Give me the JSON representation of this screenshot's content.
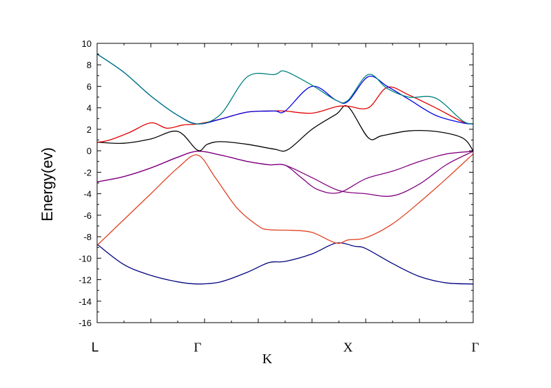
{
  "chart_data": {
    "type": "line",
    "title": "",
    "xlabel": "K",
    "ylabel": "Energy(ev)",
    "ylim": [
      -16,
      10
    ],
    "xlim": [
      0,
      7
    ],
    "y_ticks": [
      "10",
      "8",
      "6",
      "4",
      "2",
      "0",
      "-2",
      "-4",
      "-6",
      "-8",
      "-10",
      "-12",
      "-14",
      "-16"
    ],
    "k_points": [
      {
        "label": "L",
        "x": 0
      },
      {
        "label": "Γ",
        "x": 1.87
      },
      {
        "label": "X",
        "x": 4.67
      },
      {
        "label": "Γ",
        "x": 7
      }
    ],
    "grid": false,
    "legend": "none",
    "series": [
      {
        "color": "#000080",
        "x": [
          0,
          0.5,
          1.0,
          1.5,
          1.87,
          2.3,
          2.8,
          3.2,
          3.5,
          4.0,
          4.45,
          4.8,
          5.0,
          5.5,
          6.0,
          6.5,
          7.0
        ],
        "y": [
          -8.7,
          -10.6,
          -11.6,
          -12.2,
          -12.4,
          -12.2,
          -11.3,
          -10.4,
          -10.3,
          -9.6,
          -8.6,
          -8.9,
          -9.1,
          -10.5,
          -11.7,
          -12.3,
          -12.4
        ]
      },
      {
        "color": "#e04020",
        "x": [
          0,
          0.5,
          1.0,
          1.5,
          1.87,
          2.2,
          2.6,
          3.0,
          3.2,
          3.6,
          4.0,
          4.45,
          4.67,
          5.0,
          5.5,
          6.0,
          6.5,
          7.0
        ],
        "y": [
          -8.8,
          -6.4,
          -4.0,
          -1.6,
          -0.4,
          -2.5,
          -5.3,
          -7.0,
          -7.35,
          -7.4,
          -7.6,
          -8.6,
          -8.3,
          -8.1,
          -6.8,
          -4.8,
          -2.6,
          -0.3
        ]
      },
      {
        "color": "#800080",
        "x": [
          0,
          0.5,
          1.0,
          1.5,
          1.87,
          2.3,
          2.8,
          3.2,
          3.5,
          4.0,
          4.5,
          5.0,
          5.5,
          6.0,
          6.5,
          7.0
        ],
        "y": [
          -2.9,
          -2.4,
          -1.6,
          -0.6,
          -0.05,
          -0.4,
          -1.0,
          -1.3,
          -1.35,
          -2.5,
          -3.7,
          -4.0,
          -4.2,
          -3.1,
          -1.3,
          -0.05
        ]
      },
      {
        "color": "#800080",
        "x": [
          0,
          0.5,
          1.0,
          1.5,
          1.87,
          2.3,
          2.8,
          3.2,
          3.5,
          3.8,
          4.1,
          4.5,
          5.0,
          5.5,
          6.0,
          6.5,
          7.0
        ],
        "y": [
          -2.9,
          -2.4,
          -1.6,
          -0.6,
          -0.05,
          -0.4,
          -1.0,
          -1.3,
          -1.35,
          -2.5,
          -3.6,
          -3.9,
          -2.6,
          -1.9,
          -1.0,
          -0.3,
          -0.05
        ]
      },
      {
        "color": "#000000",
        "x": [
          0,
          0.5,
          1.0,
          1.5,
          1.87,
          2.05,
          2.3,
          2.8,
          3.3,
          3.55,
          4.0,
          4.45,
          4.67,
          5.05,
          5.3,
          5.8,
          6.3,
          6.8,
          7.0
        ],
        "y": [
          0.8,
          0.7,
          1.1,
          1.8,
          0.05,
          0.6,
          0.85,
          0.6,
          0.15,
          0.1,
          2.0,
          3.4,
          4.1,
          1.2,
          1.4,
          1.85,
          1.8,
          1.2,
          0.0
        ]
      },
      {
        "color": "#e00000",
        "x": [
          0,
          0.2,
          0.6,
          1.0,
          1.3,
          1.6,
          1.87,
          2.3,
          2.8,
          3.3,
          3.5,
          4.0,
          4.45,
          4.67,
          5.05,
          5.4,
          5.8,
          6.3,
          6.8,
          7.0
        ],
        "y": [
          0.8,
          0.95,
          1.7,
          2.6,
          2.1,
          2.4,
          2.5,
          2.95,
          3.6,
          3.7,
          3.7,
          3.5,
          4.1,
          4.15,
          4.0,
          5.9,
          5.2,
          4.0,
          2.7,
          2.5
        ]
      },
      {
        "color": "#0000e0",
        "x": [
          0,
          0.5,
          1.0,
          1.5,
          1.87,
          2.3,
          2.8,
          3.3,
          3.5,
          4.0,
          4.45,
          4.67,
          5.05,
          5.4,
          5.8,
          6.3,
          6.8,
          7.0
        ],
        "y": [
          9.0,
          7.3,
          5.1,
          3.3,
          2.5,
          2.95,
          3.6,
          3.7,
          3.7,
          6.0,
          4.7,
          4.6,
          6.9,
          6.0,
          4.8,
          3.3,
          2.6,
          2.5
        ]
      },
      {
        "color": "#008080",
        "x": [
          0,
          0.5,
          1.0,
          1.5,
          1.87,
          2.3,
          2.8,
          3.3,
          3.5,
          4.0,
          4.45,
          4.67,
          5.05,
          5.4,
          5.8,
          6.3,
          6.8,
          7.0
        ],
        "y": [
          9.0,
          7.3,
          5.1,
          3.3,
          2.5,
          3.4,
          6.9,
          7.1,
          7.4,
          6.1,
          4.7,
          4.7,
          7.1,
          5.8,
          5.0,
          4.9,
          2.8,
          2.5
        ]
      }
    ]
  }
}
